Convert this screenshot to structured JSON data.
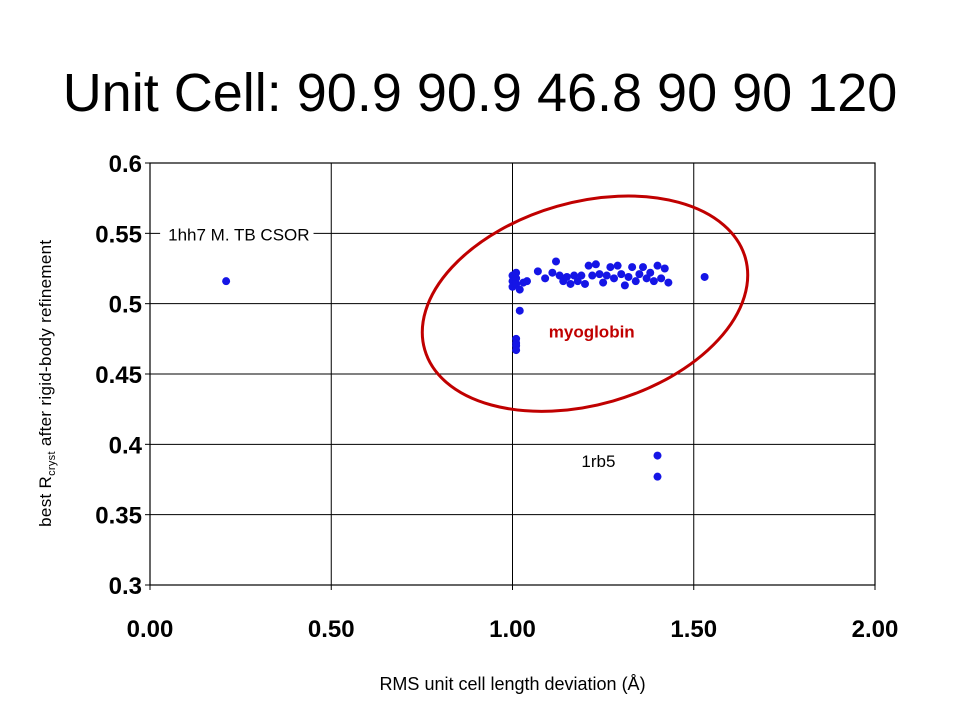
{
  "chart_data": {
    "type": "scatter",
    "title": "Unit Cell: 90.9 90.9 46.8 90 90 120",
    "xlabel": "RMS unit cell length deviation (Å)",
    "ylabel": {
      "prefix": "best R",
      "sub": "cryst",
      "suffix": " after rigid-body refinement"
    },
    "xlim": [
      0,
      2
    ],
    "ylim": [
      0.3,
      0.6
    ],
    "x_ticks": [
      "0.00",
      "0.50",
      "1.00",
      "1.50",
      "2.00"
    ],
    "y_ticks": [
      "0.6",
      "0.55",
      "0.5",
      "0.45",
      "0.4",
      "0.35",
      "0.3"
    ],
    "grid": true,
    "marker_color": "#1515e6",
    "ellipse_color": "#c00000",
    "points": [
      [
        0.21,
        0.516
      ],
      [
        1.0,
        0.52
      ],
      [
        1.0,
        0.516
      ],
      [
        1.0,
        0.512
      ],
      [
        1.01,
        0.522
      ],
      [
        1.01,
        0.518
      ],
      [
        1.01,
        0.514
      ],
      [
        1.02,
        0.51
      ],
      [
        1.03,
        0.515
      ],
      [
        1.04,
        0.516
      ],
      [
        1.02,
        0.495
      ],
      [
        1.01,
        0.475
      ],
      [
        1.01,
        0.472
      ],
      [
        1.01,
        0.47
      ],
      [
        1.01,
        0.467
      ],
      [
        1.07,
        0.523
      ],
      [
        1.09,
        0.518
      ],
      [
        1.11,
        0.522
      ],
      [
        1.12,
        0.53
      ],
      [
        1.13,
        0.52
      ],
      [
        1.14,
        0.516
      ],
      [
        1.15,
        0.519
      ],
      [
        1.16,
        0.514
      ],
      [
        1.17,
        0.52
      ],
      [
        1.18,
        0.516
      ],
      [
        1.19,
        0.52
      ],
      [
        1.2,
        0.514
      ],
      [
        1.21,
        0.527
      ],
      [
        1.22,
        0.52
      ],
      [
        1.23,
        0.528
      ],
      [
        1.24,
        0.521
      ],
      [
        1.25,
        0.515
      ],
      [
        1.26,
        0.52
      ],
      [
        1.27,
        0.526
      ],
      [
        1.28,
        0.518
      ],
      [
        1.29,
        0.527
      ],
      [
        1.3,
        0.521
      ],
      [
        1.31,
        0.513
      ],
      [
        1.32,
        0.519
      ],
      [
        1.33,
        0.526
      ],
      [
        1.34,
        0.516
      ],
      [
        1.35,
        0.521
      ],
      [
        1.36,
        0.526
      ],
      [
        1.37,
        0.518
      ],
      [
        1.38,
        0.522
      ],
      [
        1.39,
        0.516
      ],
      [
        1.4,
        0.527
      ],
      [
        1.41,
        0.518
      ],
      [
        1.42,
        0.525
      ],
      [
        1.43,
        0.515
      ],
      [
        1.53,
        0.519
      ],
      [
        1.4,
        0.392
      ],
      [
        1.4,
        0.377
      ]
    ],
    "annotations": [
      {
        "text": "1hh7 M. TB CSOR",
        "x": 0.05,
        "y": 0.545,
        "color": "#000000",
        "bold": false
      },
      {
        "text": "myoglobin",
        "x": 1.1,
        "y": 0.476,
        "color": "#c00000",
        "bold": true
      },
      {
        "text": "1rb5",
        "x": 1.19,
        "y": 0.384,
        "color": "#000000",
        "bold": false
      }
    ],
    "ellipse": {
      "cx": 1.2,
      "cy": 0.5,
      "rx": 0.46,
      "ry": 0.072,
      "angle_deg": -16
    }
  }
}
